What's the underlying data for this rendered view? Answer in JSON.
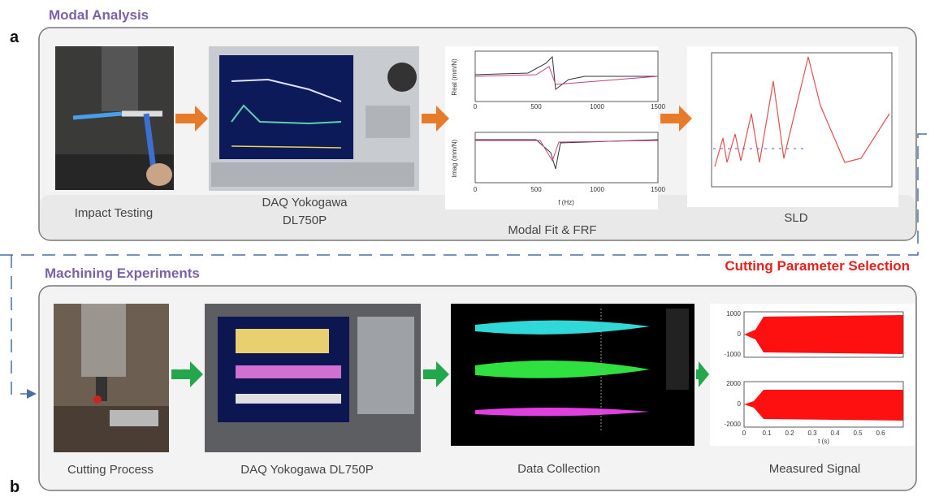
{
  "panel_a": {
    "label": "a",
    "title": "Modal Analysis",
    "steps": [
      {
        "caption": [
          "Impact Testing"
        ]
      },
      {
        "caption": [
          "DAQ Yokogawa",
          "DL750P"
        ]
      },
      {
        "caption": [
          "Modal Fit & FRF"
        ],
        "plot": {
          "ylabel_top": "Real (mm/N)",
          "ylabel_bottom": "Imag (mm/N)",
          "xlabel": "f (Hz)",
          "xticks": [
            "0",
            "500",
            "1000",
            "1500"
          ]
        }
      },
      {
        "caption": [
          "SLD"
        ]
      }
    ]
  },
  "panel_b": {
    "label": "b",
    "title": "Machining Experiments",
    "highlight": "Cutting Parameter Selection",
    "steps": [
      {
        "caption": [
          "Cutting Process"
        ]
      },
      {
        "caption": [
          "DAQ Yokogawa DL750P"
        ]
      },
      {
        "caption": [
          "Data Collection"
        ]
      },
      {
        "caption": [
          "Measured Signal"
        ],
        "plot": {
          "yticks_top": [
            "1000",
            "0",
            "-1000"
          ],
          "yticks_bottom": [
            "2000",
            "0",
            "-2000"
          ],
          "xticks": [
            "0",
            "0.1",
            "0.2",
            "0.3",
            "0.4",
            "0.5",
            "0.6"
          ],
          "xlabel": "t (s)"
        }
      }
    ]
  }
}
